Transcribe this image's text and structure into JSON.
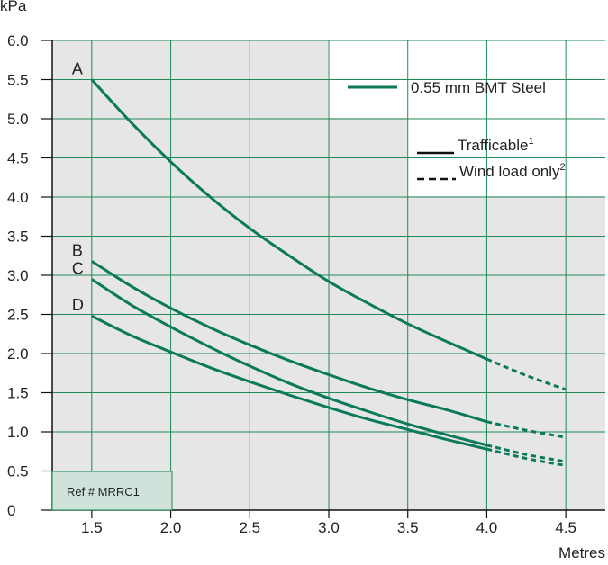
{
  "chart_data": {
    "type": "line",
    "ylabel": "kPa",
    "xlabel": "Metres",
    "xlim": [
      1.25,
      4.75
    ],
    "ylim": [
      0,
      6.0
    ],
    "x_ticks": [
      "1.5",
      "2.0",
      "2.5",
      "3.0",
      "3.5",
      "4.0",
      "4.5"
    ],
    "x_tick_values": [
      1.5,
      2.0,
      2.5,
      3.0,
      3.5,
      4.0,
      4.5
    ],
    "y_ticks": [
      "0",
      "0.5",
      "1.0",
      "1.5",
      "2.0",
      "2.5",
      "3.0",
      "3.5",
      "4.0",
      "4.5",
      "5.0",
      "5.5",
      "6.0"
    ],
    "y_tick_values": [
      0,
      0.5,
      1.0,
      1.5,
      2.0,
      2.5,
      3.0,
      3.5,
      4.0,
      4.5,
      5.0,
      5.5,
      6.0
    ],
    "grid": true,
    "series": [
      {
        "name": "A",
        "solid": {
          "x": [
            1.5,
            1.75,
            2.0,
            2.25,
            2.5,
            2.75,
            3.0,
            3.25,
            3.5,
            3.75,
            4.0
          ],
          "y": [
            5.5,
            4.95,
            4.45,
            4.0,
            3.6,
            3.25,
            2.92,
            2.64,
            2.38,
            2.15,
            1.93
          ]
        },
        "dashed": {
          "x": [
            4.0,
            4.25,
            4.5
          ],
          "y": [
            1.93,
            1.72,
            1.54
          ]
        }
      },
      {
        "name": "B",
        "solid": {
          "x": [
            1.5,
            1.75,
            2.0,
            2.25,
            2.5,
            2.75,
            3.0,
            3.25,
            3.5,
            3.75,
            4.0
          ],
          "y": [
            3.18,
            2.86,
            2.58,
            2.33,
            2.11,
            1.91,
            1.73,
            1.56,
            1.41,
            1.28,
            1.13
          ]
        },
        "dashed": {
          "x": [
            4.0,
            4.25,
            4.5
          ],
          "y": [
            1.13,
            1.02,
            0.93
          ]
        }
      },
      {
        "name": "C",
        "solid": {
          "x": [
            1.5,
            1.75,
            2.0,
            2.25,
            2.5,
            2.75,
            3.0,
            3.25,
            3.5,
            3.75,
            4.0
          ],
          "y": [
            2.95,
            2.62,
            2.34,
            2.08,
            1.84,
            1.62,
            1.43,
            1.26,
            1.1,
            0.96,
            0.83
          ]
        },
        "dashed": {
          "x": [
            4.0,
            4.25,
            4.5
          ],
          "y": [
            0.83,
            0.71,
            0.62
          ]
        }
      },
      {
        "name": "D",
        "solid": {
          "x": [
            1.5,
            1.75,
            2.0,
            2.25,
            2.5,
            2.75,
            3.0,
            3.25,
            3.5,
            3.75,
            4.0
          ],
          "y": [
            2.48,
            2.23,
            2.02,
            1.82,
            1.64,
            1.47,
            1.31,
            1.16,
            1.03,
            0.9,
            0.78
          ]
        },
        "dashed": {
          "x": [
            4.0,
            4.25,
            4.5
          ],
          "y": [
            0.78,
            0.66,
            0.57
          ]
        }
      }
    ],
    "legend": {
      "material": "0.55 mm BMT Steel",
      "solid_label": "Trafficable",
      "solid_sup": "1",
      "dashed_label": "Wind load only",
      "dashed_sup": "2"
    },
    "reference": "Ref # MRRC1"
  },
  "colors": {
    "curve": "#0a7a5a",
    "grid": "#1e8a55",
    "plot_bg": "#e6e6e6",
    "ref_box": "#cfe3da"
  }
}
